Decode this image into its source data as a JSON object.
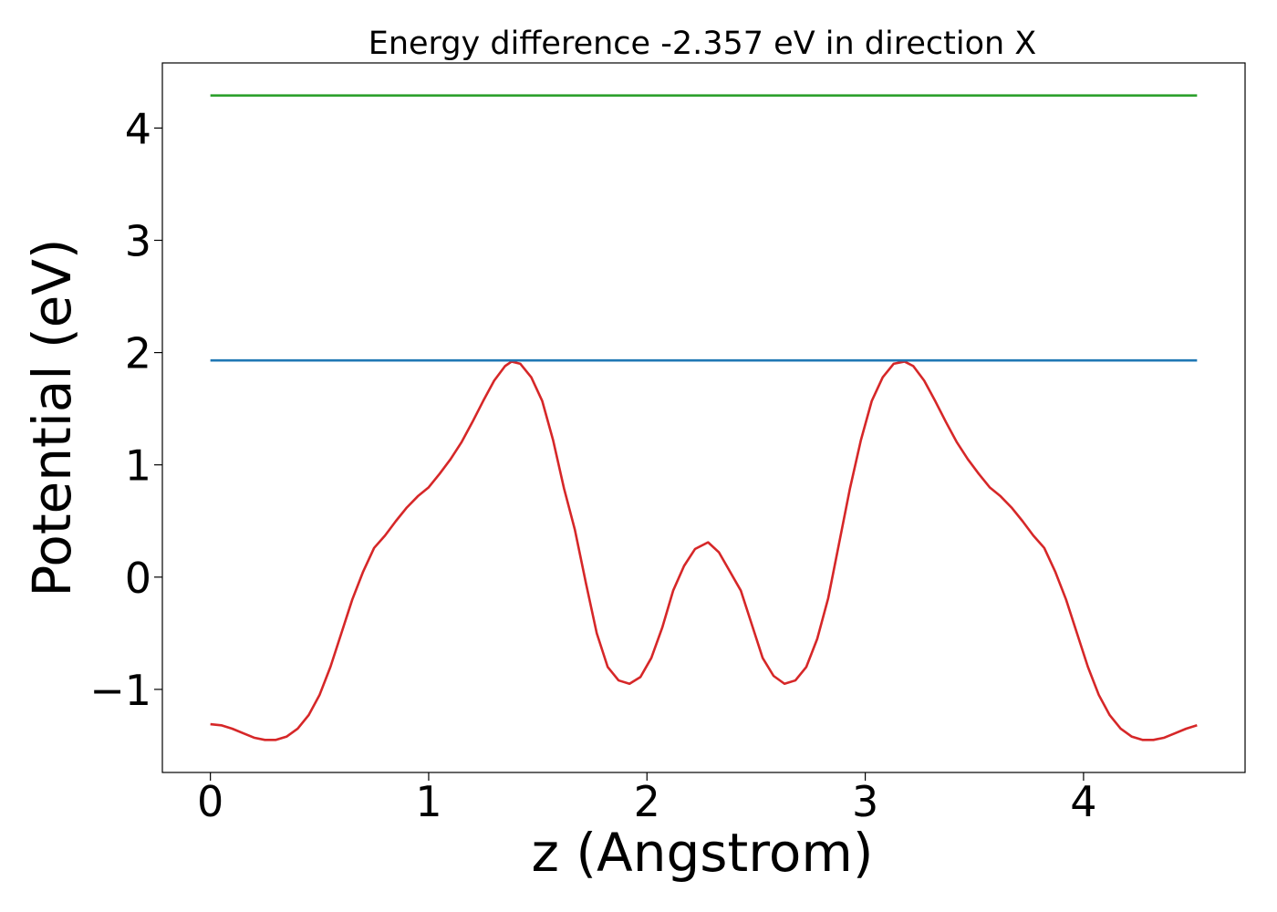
{
  "chart_data": {
    "type": "line",
    "title": "Energy difference -2.357 eV in direction X",
    "xlabel": "z (Angstrom)",
    "ylabel": "Potential (eV)",
    "xlim": [
      -0.22,
      4.74
    ],
    "ylim": [
      -1.74,
      4.58
    ],
    "xticks": [
      0,
      1,
      2,
      3,
      4
    ],
    "xtick_labels": [
      "0",
      "1",
      "2",
      "3",
      "4"
    ],
    "yticks": [
      -1,
      0,
      1,
      2,
      3,
      4
    ],
    "ytick_labels": [
      "−1",
      "0",
      "1",
      "2",
      "3",
      "4"
    ],
    "grid": false,
    "legend": "none",
    "series": [
      {
        "color": "#d62728",
        "x": [
          0.0,
          0.05,
          0.1,
          0.15,
          0.2,
          0.25,
          0.3,
          0.35,
          0.4,
          0.45,
          0.5,
          0.55,
          0.6,
          0.65,
          0.7,
          0.75,
          0.8,
          0.85,
          0.9,
          0.95,
          1.0,
          1.05,
          1.1,
          1.15,
          1.2,
          1.25,
          1.3,
          1.35,
          1.38,
          1.42,
          1.47,
          1.52,
          1.57,
          1.62,
          1.67,
          1.72,
          1.77,
          1.82,
          1.87,
          1.92,
          1.97,
          2.02,
          2.07,
          2.12,
          2.17,
          2.22,
          2.28,
          2.33,
          2.38,
          2.43,
          2.48,
          2.53,
          2.58,
          2.63,
          2.68,
          2.73,
          2.78,
          2.83,
          2.88,
          2.93,
          2.98,
          3.03,
          3.08,
          3.13,
          3.18,
          3.22,
          3.27,
          3.32,
          3.37,
          3.42,
          3.47,
          3.52,
          3.57,
          3.62,
          3.67,
          3.72,
          3.77,
          3.82,
          3.87,
          3.92,
          3.97,
          4.02,
          4.07,
          4.12,
          4.17,
          4.22,
          4.27,
          4.32,
          4.37,
          4.42,
          4.47,
          4.52
        ],
        "y": [
          -1.31,
          -1.32,
          -1.35,
          -1.39,
          -1.43,
          -1.45,
          -1.45,
          -1.42,
          -1.35,
          -1.23,
          -1.05,
          -0.8,
          -0.5,
          -0.2,
          0.05,
          0.26,
          0.37,
          0.5,
          0.62,
          0.72,
          0.8,
          0.92,
          1.05,
          1.2,
          1.38,
          1.57,
          1.75,
          1.88,
          1.92,
          1.9,
          1.78,
          1.57,
          1.22,
          0.79,
          0.42,
          -0.05,
          -0.5,
          -0.8,
          -0.92,
          -0.95,
          -0.89,
          -0.72,
          -0.45,
          -0.12,
          0.1,
          0.25,
          0.31,
          0.22,
          0.05,
          -0.12,
          -0.42,
          -0.72,
          -0.88,
          -0.95,
          -0.92,
          -0.8,
          -0.55,
          -0.19,
          0.3,
          0.79,
          1.22,
          1.57,
          1.78,
          1.9,
          1.92,
          1.88,
          1.75,
          1.57,
          1.38,
          1.2,
          1.05,
          0.92,
          0.8,
          0.72,
          0.62,
          0.5,
          0.37,
          0.26,
          0.05,
          -0.2,
          -0.5,
          -0.8,
          -1.05,
          -1.23,
          -1.35,
          -1.42,
          -1.45,
          -1.45,
          -1.43,
          -1.39,
          -1.35,
          -1.32
        ]
      },
      {
        "color": "#1f77b4",
        "x": [
          0.0,
          4.52
        ],
        "y": [
          1.93,
          1.93
        ]
      },
      {
        "color": "#2ca02c",
        "x": [
          0.0,
          4.52
        ],
        "y": [
          4.29,
          4.29
        ]
      }
    ]
  }
}
